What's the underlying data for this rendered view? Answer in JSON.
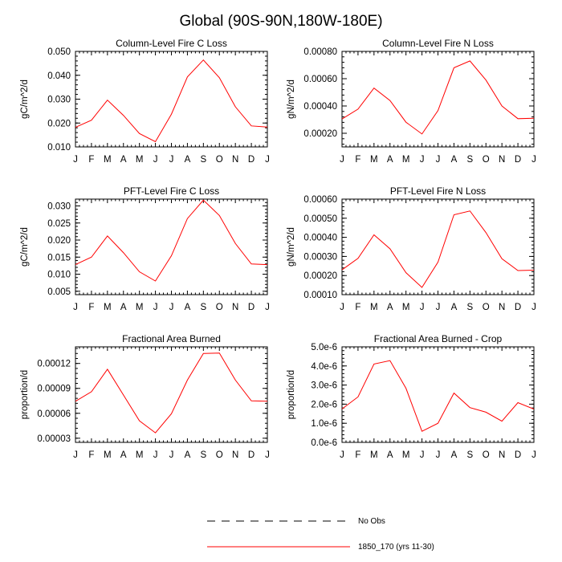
{
  "figure": {
    "title": "Global (90S-90N,180W-180E)",
    "legend": [
      {
        "label": "No Obs",
        "color": "#000000",
        "style": "dashed"
      },
      {
        "label": "1850_170 (yrs 11-30)",
        "color": "#ff0000",
        "style": "solid"
      }
    ]
  },
  "chart_data": [
    {
      "type": "line",
      "title": "Column-Level Fire C Loss",
      "ylabel": "gC/m^2/d",
      "categories": [
        "J",
        "F",
        "M",
        "A",
        "M",
        "J",
        "J",
        "A",
        "S",
        "O",
        "N",
        "D",
        "J"
      ],
      "ylim": [
        0.01,
        0.05
      ],
      "yticks": [
        0.01,
        0.02,
        0.03,
        0.04,
        0.05
      ],
      "ytick_labels": [
        "0.010",
        "0.020",
        "0.030",
        "0.040",
        "0.050"
      ],
      "series": [
        {
          "name": "1850_170 (yrs 11-30)",
          "color": "#ff0000",
          "values": [
            0.0182,
            0.0212,
            0.0296,
            0.0232,
            0.0156,
            0.0122,
            0.0237,
            0.0393,
            0.0464,
            0.039,
            0.0268,
            0.0188,
            0.0183
          ]
        }
      ]
    },
    {
      "type": "line",
      "title": "Column-Level Fire N Loss",
      "ylabel": "gN/m^2/d",
      "categories": [
        "J",
        "F",
        "M",
        "A",
        "M",
        "J",
        "J",
        "A",
        "S",
        "O",
        "N",
        "D",
        "J"
      ],
      "ylim": [
        0.0001,
        0.0008
      ],
      "yticks": [
        0.0002,
        0.0004,
        0.0006,
        0.0008
      ],
      "ytick_labels": [
        "0.00020",
        "0.00040",
        "0.00060",
        "0.00080"
      ],
      "series": [
        {
          "name": "1850_170 (yrs 11-30)",
          "color": "#ff0000",
          "values": [
            0.000305,
            0.000377,
            0.000531,
            0.00044,
            0.000281,
            0.000195,
            0.000366,
            0.00068,
            0.00073,
            0.00059,
            0.0004,
            0.000307,
            0.00031
          ]
        }
      ]
    },
    {
      "type": "line",
      "title": "PFT-Level Fire C Loss",
      "ylabel": "gC/m^2/d",
      "categories": [
        "J",
        "F",
        "M",
        "A",
        "M",
        "J",
        "J",
        "A",
        "S",
        "O",
        "N",
        "D",
        "J"
      ],
      "ylim": [
        0.004,
        0.032
      ],
      "yticks": [
        0.005,
        0.01,
        0.015,
        0.02,
        0.025,
        0.03
      ],
      "ytick_labels": [
        "0.005",
        "0.010",
        "0.015",
        "0.020",
        "0.025",
        "0.030"
      ],
      "series": [
        {
          "name": "1850_170 (yrs 11-30)",
          "color": "#ff0000",
          "values": [
            0.0128,
            0.015,
            0.0212,
            0.0163,
            0.0107,
            0.008,
            0.0154,
            0.0263,
            0.0317,
            0.0272,
            0.019,
            0.013,
            0.0128
          ]
        }
      ]
    },
    {
      "type": "line",
      "title": "PFT-Level Fire N Loss",
      "ylabel": "gN/m^2/d",
      "categories": [
        "J",
        "F",
        "M",
        "A",
        "M",
        "J",
        "J",
        "A",
        "S",
        "O",
        "N",
        "D",
        "J"
      ],
      "ylim": [
        0.0001,
        0.0006
      ],
      "yticks": [
        0.0001,
        0.0002,
        0.0003,
        0.0004,
        0.0005,
        0.0006
      ],
      "ytick_labels": [
        "0.00010",
        "0.00020",
        "0.00030",
        "0.00040",
        "0.00050",
        "0.00060"
      ],
      "series": [
        {
          "name": "1850_170 (yrs 11-30)",
          "color": "#ff0000",
          "values": [
            0.00023,
            0.00029,
            0.000413,
            0.00034,
            0.000215,
            0.000138,
            0.00027,
            0.000518,
            0.000538,
            0.000425,
            0.000288,
            0.000226,
            0.000228
          ]
        }
      ]
    },
    {
      "type": "line",
      "title": "Fractional Area Burned",
      "ylabel": "proportion/d",
      "categories": [
        "J",
        "F",
        "M",
        "A",
        "M",
        "J",
        "J",
        "A",
        "S",
        "O",
        "N",
        "D",
        "J"
      ],
      "ylim": [
        2.5e-05,
        0.00014
      ],
      "yticks": [
        3e-05,
        6e-05,
        9e-05,
        0.00012
      ],
      "ytick_labels": [
        "0.00003",
        "0.00006",
        "0.00009",
        "0.00012"
      ],
      "series": [
        {
          "name": "1850_170 (yrs 11-30)",
          "color": "#ff0000",
          "values": [
            7.45e-05,
            8.6e-05,
            0.000113,
            8.2e-05,
            5.1e-05,
            3.65e-05,
            5.95e-05,
            0.0001,
            0.000132,
            0.0001325,
            0.0001,
            7.5e-05,
            7.45e-05
          ]
        }
      ]
    },
    {
      "type": "line",
      "title": "Fractional Area Burned - Crop",
      "ylabel": "proportion/d",
      "categories": [
        "J",
        "F",
        "M",
        "A",
        "M",
        "J",
        "J",
        "A",
        "S",
        "O",
        "N",
        "D",
        "J"
      ],
      "ylim": [
        0.0,
        5e-06
      ],
      "yticks": [
        0.0,
        1e-06,
        2e-06,
        3e-06,
        4e-06,
        5e-06
      ],
      "ytick_labels": [
        "0.0e-6",
        "1.0e-6",
        "2.0e-6",
        "3.0e-6",
        "4.0e-6",
        "5.0e-6"
      ],
      "series": [
        {
          "name": "1850_170 (yrs 11-30)",
          "color": "#ff0000",
          "values": [
            1.75e-06,
            2.38e-06,
            4.1e-06,
            4.28e-06,
            2.83e-06,
            5.8e-07,
            1e-06,
            2.58e-06,
            1.82e-06,
            1.58e-06,
            1.11e-06,
            2.08e-06,
            1.74e-06
          ]
        }
      ]
    }
  ]
}
